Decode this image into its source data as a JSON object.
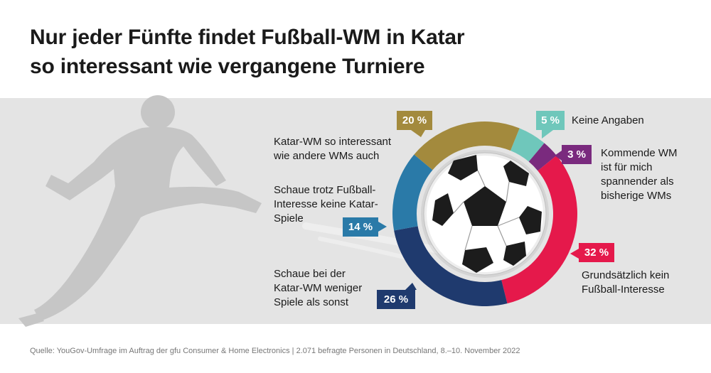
{
  "title": {
    "line1": "Nur jeder Fünfte findet Fußball-WM in Katar",
    "line2": "so interessant wie vergangene Turniere"
  },
  "chart_data": {
    "type": "donut",
    "unit": "%",
    "slices": [
      {
        "id": "keine-angaben",
        "value": 5,
        "value_label": "5 %",
        "label_lines": [
          "Keine Angaben"
        ],
        "color": "#6fc7bb"
      },
      {
        "id": "kommende-wm",
        "value": 3,
        "value_label": "3 %",
        "label_lines": [
          "Kommende WM",
          "ist für mich",
          "spannender als",
          "bisherige WMs"
        ],
        "color": "#7a2a7e"
      },
      {
        "id": "kein-interesse",
        "value": 32,
        "value_label": "32 %",
        "label_lines": [
          "Grundsätzlich kein",
          "Fußball-Interesse"
        ],
        "color": "#e5194b"
      },
      {
        "id": "weniger-spiele",
        "value": 26,
        "value_label": "26 %",
        "label_lines": [
          "Schaue bei der",
          "Katar-WM weniger",
          "Spiele als sonst"
        ],
        "color": "#1f3a6e"
      },
      {
        "id": "keine-katar-spiele",
        "value": 14,
        "value_label": "14 %",
        "label_lines": [
          "Schaue trotz Fußball-",
          "Interesse keine Katar-",
          "Spiele"
        ],
        "color": "#2a7aa8"
      },
      {
        "id": "so-interessant",
        "value": 20,
        "value_label": "20 %",
        "label_lines": [
          "Katar-WM so interessant",
          "wie andere WMs auch"
        ],
        "color": "#a38a3d"
      }
    ]
  },
  "source": "Quelle: YouGov-Umfrage im Auftrag der gfu Consumer & Home Electronics | 2.071 befragte Personen in Deutschland, 8.–10. November 2022"
}
